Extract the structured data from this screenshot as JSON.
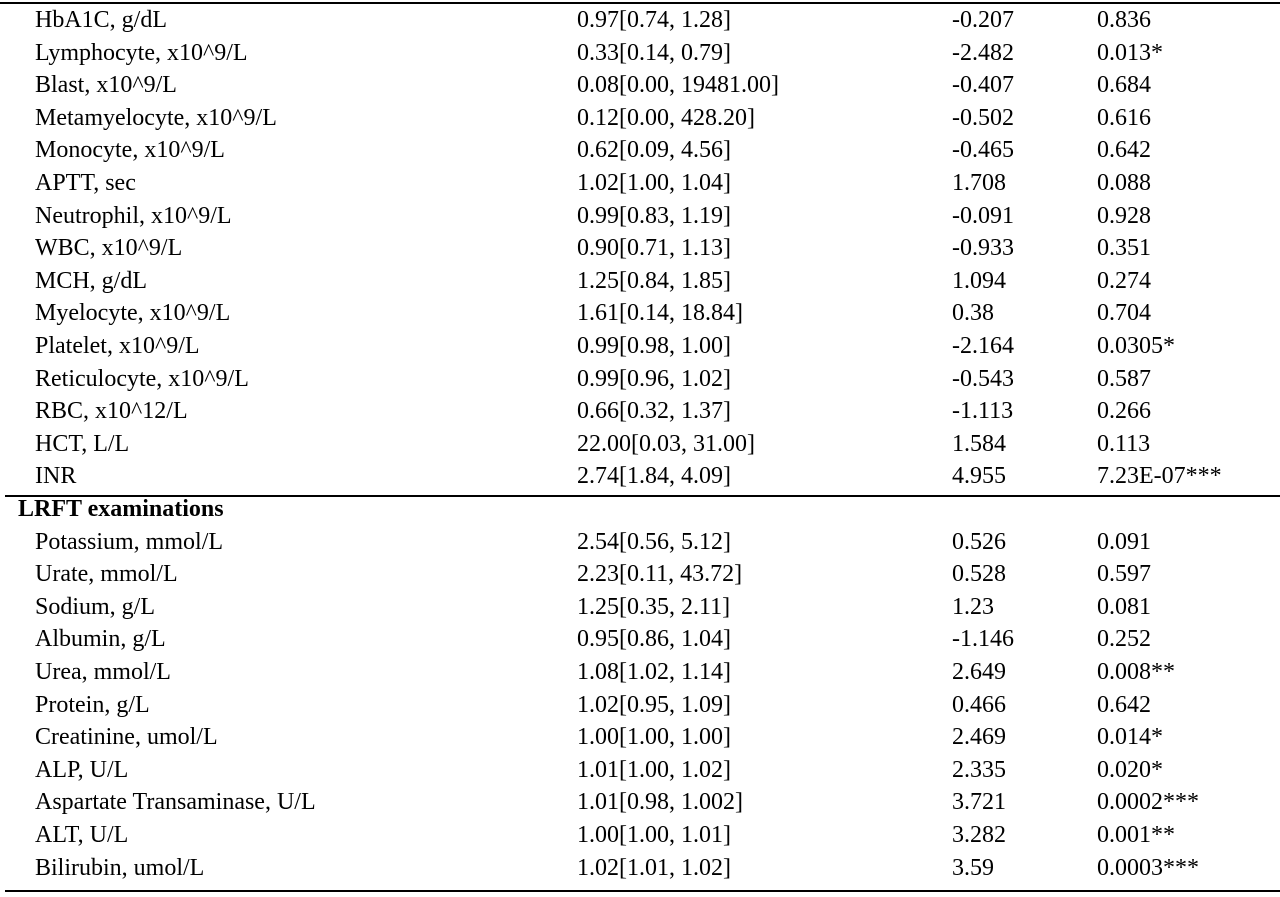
{
  "table": {
    "rows": [
      [
        "HbA1C, g/dL",
        "0.97[0.74, 1.28]",
        "-0.207",
        "0.836"
      ],
      [
        "Lymphocyte, x10^9/L",
        "0.33[0.14, 0.79]",
        "-2.482",
        "0.013*"
      ],
      [
        "Blast, x10^9/L",
        "0.08[0.00, 19481.00]",
        "-0.407",
        "0.684"
      ],
      [
        "Metamyelocyte, x10^9/L",
        "0.12[0.00, 428.20]",
        "-0.502",
        "0.616"
      ],
      [
        "Monocyte, x10^9/L",
        "0.62[0.09, 4.56]",
        "-0.465",
        "0.642"
      ],
      [
        "APTT, sec",
        "1.02[1.00, 1.04]",
        "1.708",
        "0.088"
      ],
      [
        "Neutrophil, x10^9/L",
        "0.99[0.83, 1.19]",
        "-0.091",
        "0.928"
      ],
      [
        "WBC, x10^9/L",
        "0.90[0.71, 1.13]",
        "-0.933",
        "0.351"
      ],
      [
        "MCH, g/dL",
        "1.25[0.84, 1.85]",
        "1.094",
        "0.274"
      ],
      [
        "Myelocyte, x10^9/L",
        "1.61[0.14, 18.84]",
        "0.38",
        "0.704"
      ],
      [
        "Platelet, x10^9/L",
        "0.99[0.98, 1.00]",
        "-2.164",
        "0.0305*"
      ],
      [
        "Reticulocyte, x10^9/L",
        "0.99[0.96, 1.02]",
        "-0.543",
        "0.587"
      ],
      [
        "RBC, x10^12/L",
        "0.66[0.32, 1.37]",
        "-1.113",
        "0.266"
      ],
      [
        "HCT, L/L",
        "22.00[0.03, 31.00]",
        "1.584",
        "0.113"
      ],
      [
        "INR",
        "2.74[1.84, 4.09]",
        "4.955",
        "7.23E-07***"
      ],
      [
        "LRFT examinations"
      ],
      [
        "Potassium, mmol/L",
        "2.54[0.56, 5.12]",
        "0.526",
        "0.091"
      ],
      [
        "Urate, mmol/L",
        "2.23[0.11, 43.72]",
        "0.528",
        "0.597"
      ],
      [
        "Sodium, g/L",
        "1.25[0.35, 2.11]",
        "1.23",
        "0.081"
      ],
      [
        "Albumin, g/L",
        "0.95[0.86, 1.04]",
        "-1.146",
        "0.252"
      ],
      [
        "Urea, mmol/L",
        "1.08[1.02, 1.14]",
        "2.649",
        "0.008**"
      ],
      [
        "Protein, g/L",
        "1.02[0.95, 1.09]",
        "0.466",
        "0.642"
      ],
      [
        "Creatinine, umol/L",
        "1.00[1.00, 1.00]",
        "2.469",
        "0.014*"
      ],
      [
        "ALP, U/L",
        "1.01[1.00, 1.02]",
        "2.335",
        "0.020*"
      ],
      [
        "Aspartate Transaminase, U/L",
        "1.01[0.98, 1.002]",
        "3.721",
        "0.0002***"
      ],
      [
        "ALT, U/L",
        "1.00[1.00, 1.01]",
        "3.282",
        "0.001**"
      ],
      [
        "Bilirubin, umol/L",
        "1.02[1.01, 1.02]",
        "3.59",
        "0.0003***"
      ]
    ]
  }
}
